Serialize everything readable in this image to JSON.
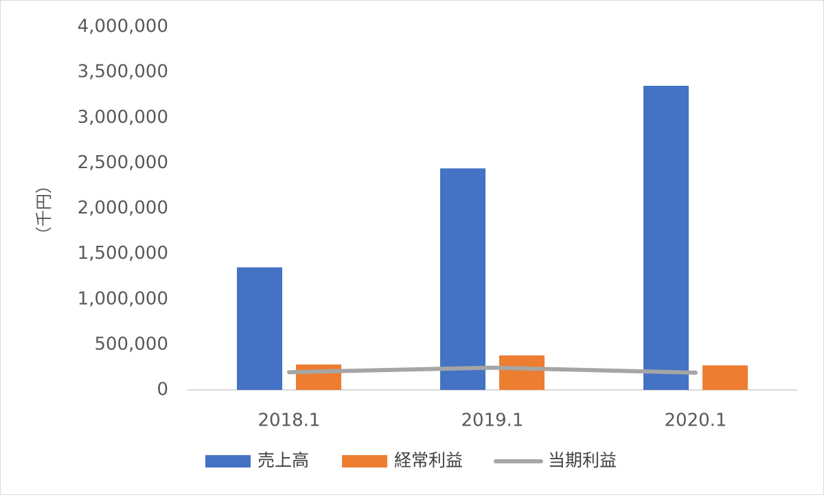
{
  "chart_data": {
    "type": "bar",
    "categories": [
      "2018.1",
      "2019.1",
      "2020.1"
    ],
    "series": [
      {
        "name": "売上高",
        "kind": "bar",
        "color": "#4472C4",
        "values": [
          1350000,
          2440000,
          3350000
        ]
      },
      {
        "name": "経常利益",
        "kind": "bar",
        "color": "#ED7D31",
        "values": [
          280000,
          380000,
          270000
        ]
      },
      {
        "name": "当期利益",
        "kind": "line",
        "color": "#A5A5A5",
        "values": [
          195000,
          245000,
          190000
        ]
      }
    ],
    "ylabel": "（千円）",
    "ylim": [
      0,
      4000000
    ],
    "yticks": [
      0,
      500000,
      1000000,
      1500000,
      2000000,
      2500000,
      3000000,
      3500000,
      4000000
    ],
    "ytick_labels": [
      "0",
      "500,000",
      "1,000,000",
      "1,500,000",
      "2,000,000",
      "2,500,000",
      "3,000,000",
      "3,500,000",
      "4,000,000"
    ],
    "grid": false,
    "legend": "bottom"
  }
}
